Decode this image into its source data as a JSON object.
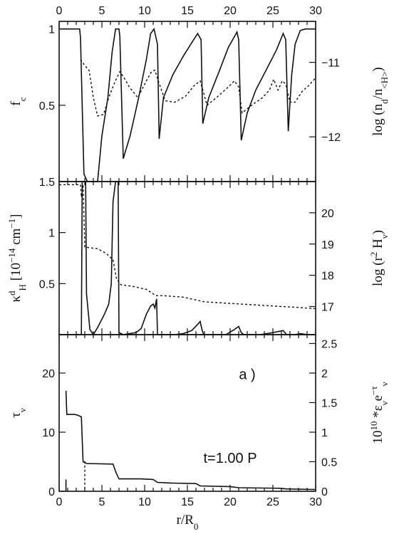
{
  "chart_data": {
    "type": "line",
    "shared_x": {
      "label_parts": [
        "r/R",
        "0"
      ],
      "range": [
        0,
        30
      ],
      "ticks": [
        0,
        5,
        10,
        15,
        20,
        25,
        30
      ]
    },
    "panels": [
      {
        "id": "top",
        "ylabel_left_parts": [
          "f",
          "c"
        ],
        "ylabel_right_parts": [
          "log (n",
          "d",
          "/n",
          "<H>",
          ")"
        ],
        "ylim_left": [
          0.0,
          1.05
        ],
        "ylim_right": [
          -12.6,
          -10.45
        ],
        "left_ticks": [
          {
            "v": 0.5,
            "t": "0.5"
          },
          {
            "v": 1.0,
            "t": "1"
          }
        ],
        "right_ticks": [
          {
            "v": -11,
            "t": "−11"
          },
          {
            "v": -12,
            "t": "−12"
          }
        ],
        "series": [
          {
            "axis": "left",
            "style": "solid",
            "points": [
              [
                0,
                1.0
              ],
              [
                2.4,
                1.0
              ],
              [
                2.5,
                0.94
              ],
              [
                2.9,
                0.05
              ],
              [
                3.3,
                0.0
              ],
              [
                4.5,
                0.0
              ],
              [
                5.0,
                0.3
              ],
              [
                5.7,
                0.55
              ],
              [
                6.2,
                0.85
              ],
              [
                6.6,
                1.0
              ],
              [
                7.0,
                1.0
              ],
              [
                7.1,
                0.95
              ],
              [
                7.5,
                0.15
              ],
              [
                8.3,
                0.3
              ],
              [
                9.3,
                0.55
              ],
              [
                10.2,
                0.8
              ],
              [
                10.7,
                0.97
              ],
              [
                11.1,
                1.0
              ],
              [
                11.5,
                0.9
              ],
              [
                11.7,
                0.28
              ],
              [
                12.2,
                0.55
              ],
              [
                13.3,
                0.7
              ],
              [
                14.5,
                0.82
              ],
              [
                15.4,
                0.9
              ],
              [
                16.2,
                0.97
              ],
              [
                16.6,
                0.93
              ],
              [
                16.8,
                0.38
              ],
              [
                17.5,
                0.55
              ],
              [
                18.7,
                0.72
              ],
              [
                19.8,
                0.88
              ],
              [
                20.8,
                0.98
              ],
              [
                21.0,
                0.93
              ],
              [
                21.3,
                0.27
              ],
              [
                22.0,
                0.45
              ],
              [
                23.0,
                0.6
              ],
              [
                24.2,
                0.73
              ],
              [
                25.4,
                0.86
              ],
              [
                26.2,
                0.97
              ],
              [
                26.5,
                0.93
              ],
              [
                26.8,
                0.33
              ],
              [
                27.2,
                0.7
              ],
              [
                27.6,
                0.9
              ],
              [
                28.2,
                0.99
              ],
              [
                28.8,
                1.0
              ],
              [
                30,
                1.0
              ]
            ]
          },
          {
            "axis": "left",
            "style": "dotted",
            "points": [
              [
                2.5,
                0.8
              ],
              [
                3.0,
                0.76
              ],
              [
                3.5,
                0.73
              ],
              [
                4.0,
                0.55
              ],
              [
                4.5,
                0.43
              ],
              [
                5.2,
                0.44
              ],
              [
                5.8,
                0.55
              ],
              [
                6.5,
                0.65
              ],
              [
                7.1,
                0.72
              ],
              [
                7.6,
                0.68
              ],
              [
                8.2,
                0.62
              ],
              [
                9.2,
                0.55
              ],
              [
                10.2,
                0.66
              ],
              [
                10.8,
                0.72
              ],
              [
                11.2,
                0.73
              ],
              [
                11.6,
                0.66
              ],
              [
                12.4,
                0.53
              ],
              [
                13.5,
                0.52
              ],
              [
                14.8,
                0.56
              ],
              [
                15.8,
                0.63
              ],
              [
                16.5,
                0.66
              ],
              [
                16.8,
                0.6
              ],
              [
                17.3,
                0.5
              ],
              [
                18.4,
                0.55
              ],
              [
                19.6,
                0.61
              ],
              [
                20.5,
                0.66
              ],
              [
                21.0,
                0.62
              ],
              [
                21.4,
                0.45
              ],
              [
                22.5,
                0.5
              ],
              [
                23.8,
                0.55
              ],
              [
                24.6,
                0.6
              ],
              [
                25.1,
                0.67
              ],
              [
                25.6,
                0.6
              ],
              [
                26.1,
                0.66
              ],
              [
                26.5,
                0.64
              ],
              [
                27.0,
                0.52
              ],
              [
                27.6,
                0.52
              ],
              [
                28.4,
                0.59
              ],
              [
                29.2,
                0.63
              ],
              [
                30,
                0.68
              ]
            ]
          }
        ]
      },
      {
        "id": "middle",
        "ylabel_left_parts": [
          "κ",
          "d",
          "H",
          " [10",
          "−14",
          " cm",
          "−1",
          "]"
        ],
        "ylabel_right_parts": [
          "log (r",
          "2",
          " H",
          "ν",
          ")"
        ],
        "ylim_left": [
          0.0,
          1.5
        ],
        "ylim_right": [
          16.1,
          21.0
        ],
        "left_ticks": [
          {
            "v": 0.5,
            "t": "0.5"
          },
          {
            "v": 1.0,
            "t": "1"
          },
          {
            "v": 1.5,
            "t": "1.5"
          }
        ],
        "right_ticks": [
          {
            "v": 17,
            "t": "17"
          },
          {
            "v": 18,
            "t": "18"
          },
          {
            "v": 19,
            "t": "19"
          },
          {
            "v": 20,
            "t": "20"
          }
        ],
        "series": [
          {
            "axis": "left",
            "style": "solid",
            "points": [
              [
                0,
                0.0
              ],
              [
                2.6,
                0.0
              ],
              [
                2.7,
                1.5
              ],
              [
                3.1,
                1.5
              ],
              [
                3.2,
                0.4
              ],
              [
                3.6,
                0.05
              ],
              [
                4.0,
                0.0
              ],
              [
                4.5,
                0.07
              ],
              [
                5.3,
                0.2
              ],
              [
                5.8,
                0.3
              ],
              [
                6.1,
                0.5
              ],
              [
                6.3,
                1.3
              ],
              [
                6.6,
                1.5
              ],
              [
                6.9,
                1.5
              ],
              [
                7.0,
                0.02
              ],
              [
                7.5,
                0.0
              ],
              [
                9.0,
                0.02
              ],
              [
                9.6,
                0.06
              ],
              [
                10.2,
                0.2
              ],
              [
                10.7,
                0.28
              ],
              [
                11.0,
                0.3
              ],
              [
                11.2,
                0.26
              ],
              [
                11.4,
                0.35
              ],
              [
                11.5,
                0.0
              ],
              [
                13.5,
                0.0
              ],
              [
                14.5,
                0.01
              ],
              [
                15.5,
                0.04
              ],
              [
                16.2,
                0.1
              ],
              [
                16.5,
                0.13
              ],
              [
                16.7,
                0.05
              ],
              [
                16.9,
                0.0
              ],
              [
                19.5,
                0.0
              ],
              [
                20.5,
                0.05
              ],
              [
                21.0,
                0.08
              ],
              [
                21.3,
                0.02
              ],
              [
                21.6,
                0.0
              ],
              [
                23.5,
                0.0
              ],
              [
                25.0,
                0.02
              ],
              [
                26.2,
                0.04
              ],
              [
                26.6,
                0.0
              ],
              [
                27.5,
                0.0
              ],
              [
                28.3,
                0.01
              ],
              [
                29.0,
                0.0
              ],
              [
                30,
                0.0
              ]
            ]
          },
          {
            "axis": "right",
            "style": "dotted",
            "points": [
              [
                0,
                20.9
              ],
              [
                2.5,
                20.9
              ],
              [
                2.6,
                20.5
              ],
              [
                2.8,
                20.9
              ],
              [
                3.0,
                18.9
              ],
              [
                4.5,
                18.85
              ],
              [
                5.5,
                18.7
              ],
              [
                6.3,
                18.5
              ],
              [
                6.7,
                17.9
              ],
              [
                7.2,
                17.7
              ],
              [
                8.5,
                17.65
              ],
              [
                10.2,
                17.55
              ],
              [
                11.3,
                17.35
              ],
              [
                12.0,
                17.35
              ],
              [
                14.5,
                17.3
              ],
              [
                17.0,
                17.15
              ],
              [
                20.0,
                17.1
              ],
              [
                23.0,
                17.05
              ],
              [
                26.0,
                17.0
              ],
              [
                28.0,
                16.97
              ],
              [
                30,
                16.93
              ]
            ]
          }
        ]
      },
      {
        "id": "bottom",
        "ylabel_left_parts": [
          "τ",
          "ν"
        ],
        "ylabel_right_parts": [
          "10",
          "10",
          " *ε",
          "ν",
          "e",
          "−τ",
          "ν"
        ],
        "ylim_left": [
          0,
          26.5
        ],
        "ylim_right": [
          0,
          2.65
        ],
        "left_ticks": [
          {
            "v": 0,
            "t": "0"
          },
          {
            "v": 10,
            "t": "10"
          },
          {
            "v": 20,
            "t": "20"
          }
        ],
        "right_ticks": [
          {
            "v": 0,
            "t": "0"
          },
          {
            "v": 0.5,
            "t": "0.5"
          },
          {
            "v": 1,
            "t": "1"
          },
          {
            "v": 1.5,
            "t": "1.5"
          },
          {
            "v": 2,
            "t": "2"
          },
          {
            "v": 2.5,
            "t": "2.5"
          }
        ],
        "annotations": [
          {
            "text": "a )",
            "x": 22.0,
            "y": 19.0
          },
          {
            "text": "t=1.00 P",
            "x": 20.0,
            "y": 4.8
          }
        ],
        "series": [
          {
            "axis": "left",
            "style": "solid",
            "points": [
              [
                0.8,
                17.0
              ],
              [
                0.9,
                13.0
              ],
              [
                1.8,
                13.0
              ],
              [
                2.1,
                12.9
              ],
              [
                2.6,
                12.6
              ],
              [
                2.8,
                5.0
              ],
              [
                3.2,
                4.7
              ],
              [
                6.3,
                4.6
              ],
              [
                6.7,
                3.0
              ],
              [
                7.0,
                2.1
              ],
              [
                9.5,
                2.1
              ],
              [
                11.0,
                2.0
              ],
              [
                11.5,
                1.5
              ],
              [
                13.0,
                1.4
              ],
              [
                16.0,
                1.3
              ],
              [
                16.5,
                0.9
              ],
              [
                20.0,
                0.8
              ],
              [
                21.0,
                0.6
              ],
              [
                26.0,
                0.5
              ],
              [
                26.5,
                0.4
              ],
              [
                30,
                0.3
              ]
            ]
          },
          {
            "axis": "left",
            "style": "solid",
            "points": [
              [
                0.8,
                2.0
              ],
              [
                0.8,
                0.0
              ]
            ]
          },
          {
            "axis": "left",
            "style": "dotted",
            "points": [
              [
                3.0,
                5.1
              ],
              [
                3.0,
                0.0
              ]
            ]
          }
        ]
      }
    ]
  }
}
